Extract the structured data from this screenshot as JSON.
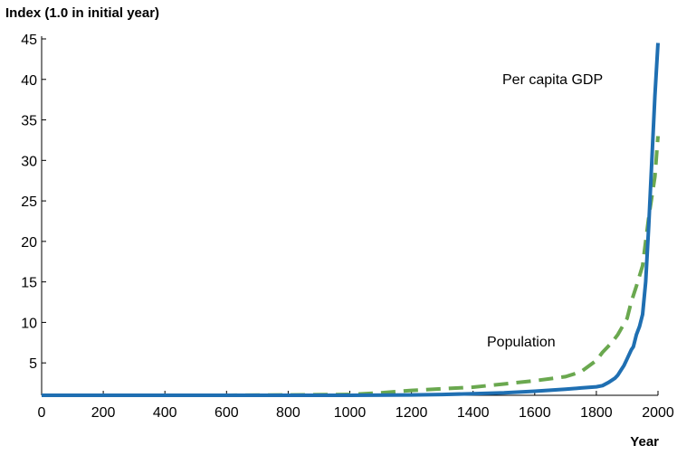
{
  "chart_data": {
    "type": "line",
    "title": "Index (1.0 in initial year)",
    "xlabel": "Year",
    "ylabel": "",
    "xlim": [
      0,
      2000
    ],
    "ylim": [
      1,
      45
    ],
    "xticks": [
      0,
      200,
      400,
      600,
      800,
      1000,
      1200,
      1400,
      1600,
      1800,
      2000
    ],
    "yticks": [
      5,
      10,
      15,
      20,
      25,
      30,
      35,
      40,
      45
    ],
    "grid": false,
    "legend": "none",
    "series": [
      {
        "name": "Per capita GDP",
        "color": "#1f6fb2",
        "style": "solid",
        "x": [
          0,
          200,
          400,
          600,
          800,
          1000,
          1200,
          1300,
          1400,
          1500,
          1600,
          1700,
          1750,
          1800,
          1820,
          1840,
          1860,
          1870,
          1880,
          1890,
          1900,
          1913,
          1920,
          1930,
          1940,
          1950,
          1960,
          1970,
          1980,
          1990,
          2000
        ],
        "y": [
          1.0,
          1.0,
          1.0,
          1.0,
          1.0,
          1.0,
          1.05,
          1.1,
          1.2,
          1.3,
          1.5,
          1.75,
          1.9,
          2.05,
          2.2,
          2.6,
          3.1,
          3.5,
          4.1,
          4.7,
          5.5,
          6.6,
          7.0,
          8.5,
          9.5,
          11.0,
          15.0,
          22.0,
          30.0,
          38.0,
          44.5
        ]
      },
      {
        "name": "Population",
        "color": "#6aa84f",
        "style": "dashed",
        "x": [
          0,
          200,
          400,
          600,
          800,
          1000,
          1100,
          1200,
          1300,
          1400,
          1500,
          1600,
          1700,
          1750,
          1800,
          1820,
          1850,
          1870,
          1900,
          1913,
          1930,
          1950,
          1970,
          1990,
          2000
        ],
        "y": [
          1.0,
          1.0,
          1.0,
          1.0,
          1.05,
          1.1,
          1.3,
          1.6,
          1.8,
          2.0,
          2.4,
          2.8,
          3.3,
          3.9,
          5.3,
          6.3,
          7.5,
          8.5,
          10.5,
          12.5,
          14.5,
          17.0,
          23.0,
          28.0,
          33.0
        ]
      }
    ],
    "annotations": [
      {
        "text": "Per capita GDP",
        "series": "Per capita GDP"
      },
      {
        "text": "Population",
        "series": "Population"
      }
    ]
  }
}
